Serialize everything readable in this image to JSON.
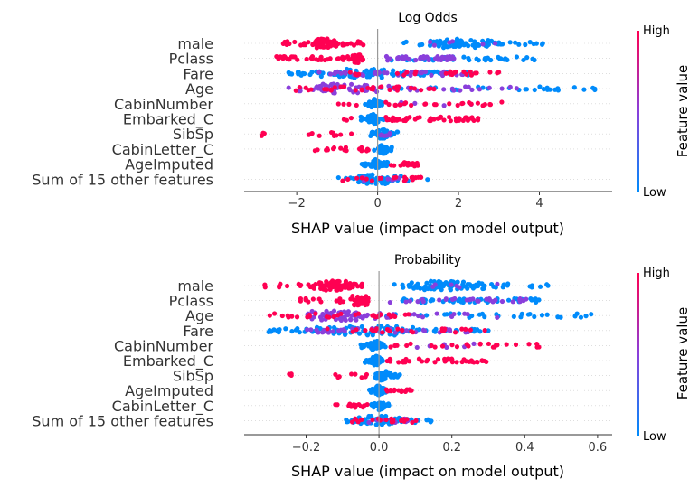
{
  "chart_data": [
    {
      "type": "scatter",
      "title": "Log Odds",
      "xlabel": "SHAP value (impact on model output)",
      "xlim": [
        -3.3,
        5.8
      ],
      "xticks": [
        -2,
        0,
        2,
        4
      ],
      "xtick_labels": [
        "−2",
        "0",
        "2",
        "4"
      ],
      "zero_line": 0,
      "features": [
        "male",
        "Pclass",
        "Fare",
        "Age",
        "CabinNumber",
        "Embarked_C",
        "SibSp",
        "CabinLetter_C",
        "AgeImputed",
        "Sum of 15 other features"
      ],
      "distributions": [
        {
          "feature": "male",
          "clusters": [
            {
              "from": -2.5,
              "to": -0.8,
              "n": 70,
              "color": "high",
              "peak": -1.3
            },
            {
              "from": -0.8,
              "to": -0.35,
              "n": 8,
              "color": "high"
            },
            {
              "from": 0.6,
              "to": 4.1,
              "n": 85,
              "color": "low",
              "peak": 2.0
            },
            {
              "from": 1.2,
              "to": 3.2,
              "n": 6,
              "color": "mid"
            }
          ]
        },
        {
          "feature": "Pclass",
          "clusters": [
            {
              "from": -2.5,
              "to": -1.0,
              "n": 25,
              "color": "high"
            },
            {
              "from": -1.0,
              "to": -0.35,
              "n": 30,
              "color": "high",
              "peak": -0.5
            },
            {
              "from": 0.2,
              "to": 2.0,
              "n": 35,
              "color": "mid"
            },
            {
              "from": 0.3,
              "to": 4.0,
              "n": 45,
              "color": "low"
            }
          ]
        },
        {
          "feature": "Fare",
          "clusters": [
            {
              "from": -2.2,
              "to": 2.5,
              "n": 100,
              "color": "low",
              "peak": -0.3
            },
            {
              "from": -1.5,
              "to": 2.2,
              "n": 35,
              "color": "mid"
            },
            {
              "from": -1.0,
              "to": 3.0,
              "n": 25,
              "color": "high"
            }
          ]
        },
        {
          "feature": "Age",
          "clusters": [
            {
              "from": -2.2,
              "to": 3.5,
              "n": 70,
              "color": "mid",
              "peak": -1.0
            },
            {
              "from": -2.2,
              "to": 1.5,
              "n": 35,
              "color": "high"
            },
            {
              "from": 0.0,
              "to": 5.4,
              "n": 30,
              "color": "low"
            }
          ]
        },
        {
          "feature": "CabinNumber",
          "clusters": [
            {
              "from": -0.35,
              "to": 0.15,
              "n": 40,
              "color": "low",
              "peak": -0.1
            },
            {
              "from": 0.2,
              "to": 3.1,
              "n": 25,
              "color": "high"
            },
            {
              "from": -1.1,
              "to": -0.4,
              "n": 4,
              "color": "high"
            },
            {
              "from": 0.5,
              "to": 2.5,
              "n": 6,
              "color": "mid"
            }
          ]
        },
        {
          "feature": "Embarked_C",
          "clusters": [
            {
              "from": -0.45,
              "to": 0.15,
              "n": 40,
              "color": "low",
              "peak": -0.1
            },
            {
              "from": 0.2,
              "to": 2.6,
              "n": 45,
              "color": "high"
            },
            {
              "from": -1.2,
              "to": -0.5,
              "n": 3,
              "color": "high"
            }
          ]
        },
        {
          "feature": "SibSp",
          "clusters": [
            {
              "from": -2.9,
              "to": -2.7,
              "n": 3,
              "color": "high"
            },
            {
              "from": -1.8,
              "to": -0.4,
              "n": 10,
              "color": "high"
            },
            {
              "from": -0.2,
              "to": 0.5,
              "n": 40,
              "color": "low",
              "peak": 0.1
            },
            {
              "from": 0.0,
              "to": 0.4,
              "n": 6,
              "color": "mid"
            }
          ]
        },
        {
          "feature": "CabinLetter_C",
          "clusters": [
            {
              "from": -1.6,
              "to": -0.2,
              "n": 18,
              "color": "high"
            },
            {
              "from": -0.1,
              "to": 0.4,
              "n": 40,
              "color": "low",
              "peak": 0.15
            }
          ]
        },
        {
          "feature": "AgeImputed",
          "clusters": [
            {
              "from": -0.4,
              "to": 0.25,
              "n": 45,
              "color": "low",
              "peak": -0.05
            },
            {
              "from": 0.3,
              "to": 1.0,
              "n": 18,
              "color": "high"
            }
          ]
        },
        {
          "feature": "Sum of 15 other features",
          "clusters": [
            {
              "from": -1.0,
              "to": 1.4,
              "n": 60,
              "color": "low",
              "peak": 0.0
            },
            {
              "from": -1.0,
              "to": 1.2,
              "n": 20,
              "color": "high"
            },
            {
              "from": -0.5,
              "to": 0.8,
              "n": 10,
              "color": "mid"
            }
          ]
        }
      ]
    },
    {
      "type": "scatter",
      "title": "Probability",
      "xlabel": "SHAP value (impact on model output)",
      "xlim": [
        -0.37,
        0.64
      ],
      "xticks": [
        -0.2,
        0.0,
        0.2,
        0.4,
        0.6
      ],
      "xtick_labels": [
        "−0.2",
        "0.0",
        "0.2",
        "0.4",
        "0.6"
      ],
      "zero_line": 0,
      "features": [
        "male",
        "Pclass",
        "Age",
        "Fare",
        "CabinNumber",
        "Embarked_C",
        "SibSp",
        "AgeImputed",
        "CabinLetter_C",
        "Sum of 15 other features"
      ],
      "distributions": [
        {
          "feature": "male",
          "clusters": [
            {
              "from": -0.32,
              "to": -0.04,
              "n": 80,
              "color": "high",
              "peak": -0.12
            },
            {
              "from": 0.04,
              "to": 0.5,
              "n": 85,
              "color": "low",
              "peak": 0.18
            },
            {
              "from": 0.1,
              "to": 0.35,
              "n": 6,
              "color": "mid"
            }
          ]
        },
        {
          "feature": "Pclass",
          "clusters": [
            {
              "from": -0.22,
              "to": -0.03,
              "n": 50,
              "color": "high",
              "peak": -0.05
            },
            {
              "from": 0.03,
              "to": 0.45,
              "n": 30,
              "color": "mid"
            },
            {
              "from": 0.05,
              "to": 0.45,
              "n": 45,
              "color": "low"
            }
          ]
        },
        {
          "feature": "Age",
          "clusters": [
            {
              "from": -0.2,
              "to": 0.35,
              "n": 70,
              "color": "mid",
              "peak": -0.12
            },
            {
              "from": -0.3,
              "to": 0.1,
              "n": 30,
              "color": "high"
            },
            {
              "from": 0.0,
              "to": 0.6,
              "n": 30,
              "color": "low"
            }
          ]
        },
        {
          "feature": "Fare",
          "clusters": [
            {
              "from": -0.33,
              "to": 0.3,
              "n": 100,
              "color": "low",
              "peak": -0.02
            },
            {
              "from": -0.2,
              "to": 0.25,
              "n": 35,
              "color": "mid"
            },
            {
              "from": -0.15,
              "to": 0.3,
              "n": 25,
              "color": "high"
            }
          ]
        },
        {
          "feature": "CabinNumber",
          "clusters": [
            {
              "from": -0.05,
              "to": 0.02,
              "n": 40,
              "color": "low",
              "peak": -0.01
            },
            {
              "from": 0.03,
              "to": 0.44,
              "n": 25,
              "color": "high"
            },
            {
              "from": 0.05,
              "to": 0.3,
              "n": 6,
              "color": "mid"
            }
          ]
        },
        {
          "feature": "Embarked_C",
          "clusters": [
            {
              "from": -0.04,
              "to": 0.02,
              "n": 40,
              "color": "low",
              "peak": -0.01
            },
            {
              "from": 0.02,
              "to": 0.3,
              "n": 45,
              "color": "high"
            }
          ]
        },
        {
          "feature": "SibSp",
          "clusters": [
            {
              "from": -0.26,
              "to": -0.24,
              "n": 3,
              "color": "high"
            },
            {
              "from": -0.12,
              "to": -0.03,
              "n": 8,
              "color": "high"
            },
            {
              "from": -0.02,
              "to": 0.06,
              "n": 40,
              "color": "low",
              "peak": 0.01
            }
          ]
        },
        {
          "feature": "AgeImputed",
          "clusters": [
            {
              "from": -0.03,
              "to": 0.03,
              "n": 40,
              "color": "low",
              "peak": 0.0
            },
            {
              "from": 0.02,
              "to": 0.09,
              "n": 18,
              "color": "high"
            }
          ]
        },
        {
          "feature": "CabinLetter_C",
          "clusters": [
            {
              "from": -0.12,
              "to": -0.02,
              "n": 15,
              "color": "high"
            },
            {
              "from": -0.02,
              "to": 0.03,
              "n": 35,
              "color": "low",
              "peak": 0.0
            }
          ]
        },
        {
          "feature": "Sum of 15 other features",
          "clusters": [
            {
              "from": -0.09,
              "to": 0.15,
              "n": 60,
              "color": "low",
              "peak": 0.0
            },
            {
              "from": -0.09,
              "to": 0.12,
              "n": 20,
              "color": "high"
            },
            {
              "from": -0.05,
              "to": 0.08,
              "n": 10,
              "color": "mid"
            }
          ]
        }
      ]
    }
  ],
  "colorbar": {
    "label": "Feature value",
    "high_label": "High",
    "low_label": "Low",
    "colors": {
      "low": "#008bfb",
      "mid": "#8a3fdb",
      "high": "#ff0052"
    }
  }
}
